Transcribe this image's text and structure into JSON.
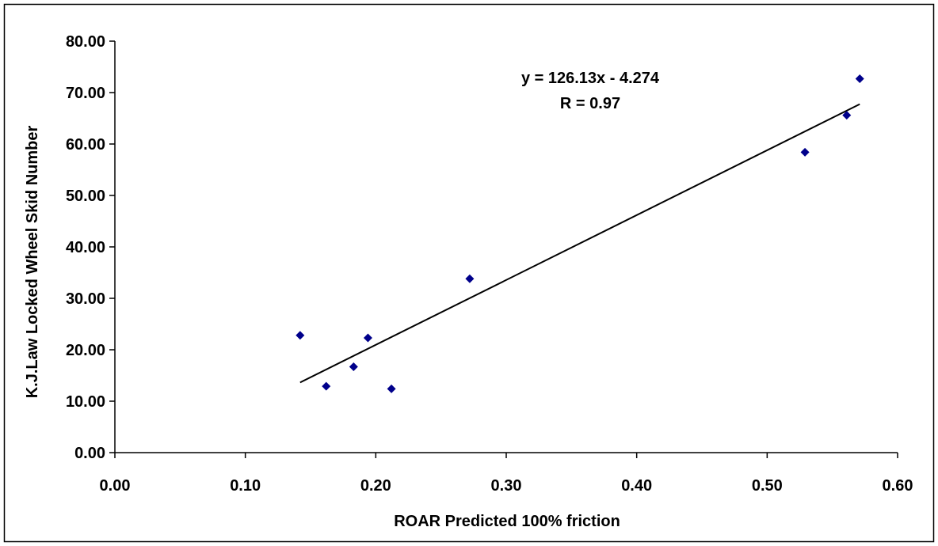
{
  "chart_data": {
    "type": "scatter",
    "title": "",
    "xlabel": "ROAR Predicted 100% friction",
    "ylabel": "K.J.Law Locked Wheel Skid Number",
    "xlim": [
      0,
      0.6
    ],
    "ylim": [
      0,
      80
    ],
    "x_ticks": [
      "0.00",
      "0.10",
      "0.20",
      "0.30",
      "0.40",
      "0.50",
      "0.60"
    ],
    "y_ticks": [
      "0.00",
      "10.00",
      "20.00",
      "30.00",
      "40.00",
      "50.00",
      "60.00",
      "70.00",
      "80.00"
    ],
    "grid": false,
    "legend": "none",
    "marker_color": "#00008b",
    "trendline_color": "#000000",
    "series": [
      {
        "x": [
          0.142,
          0.162,
          0.183,
          0.194,
          0.212,
          0.272,
          0.529,
          0.561,
          0.571
        ],
        "y": [
          22.8,
          12.9,
          16.7,
          22.3,
          12.4,
          33.8,
          58.4,
          65.6,
          72.7
        ]
      }
    ],
    "trendline": {
      "slope": 126.13,
      "intercept": -4.274,
      "x_range": [
        0.142,
        0.571
      ]
    },
    "annotations": [
      "y = 126.13x - 4.274",
      "R = 0.97"
    ]
  }
}
